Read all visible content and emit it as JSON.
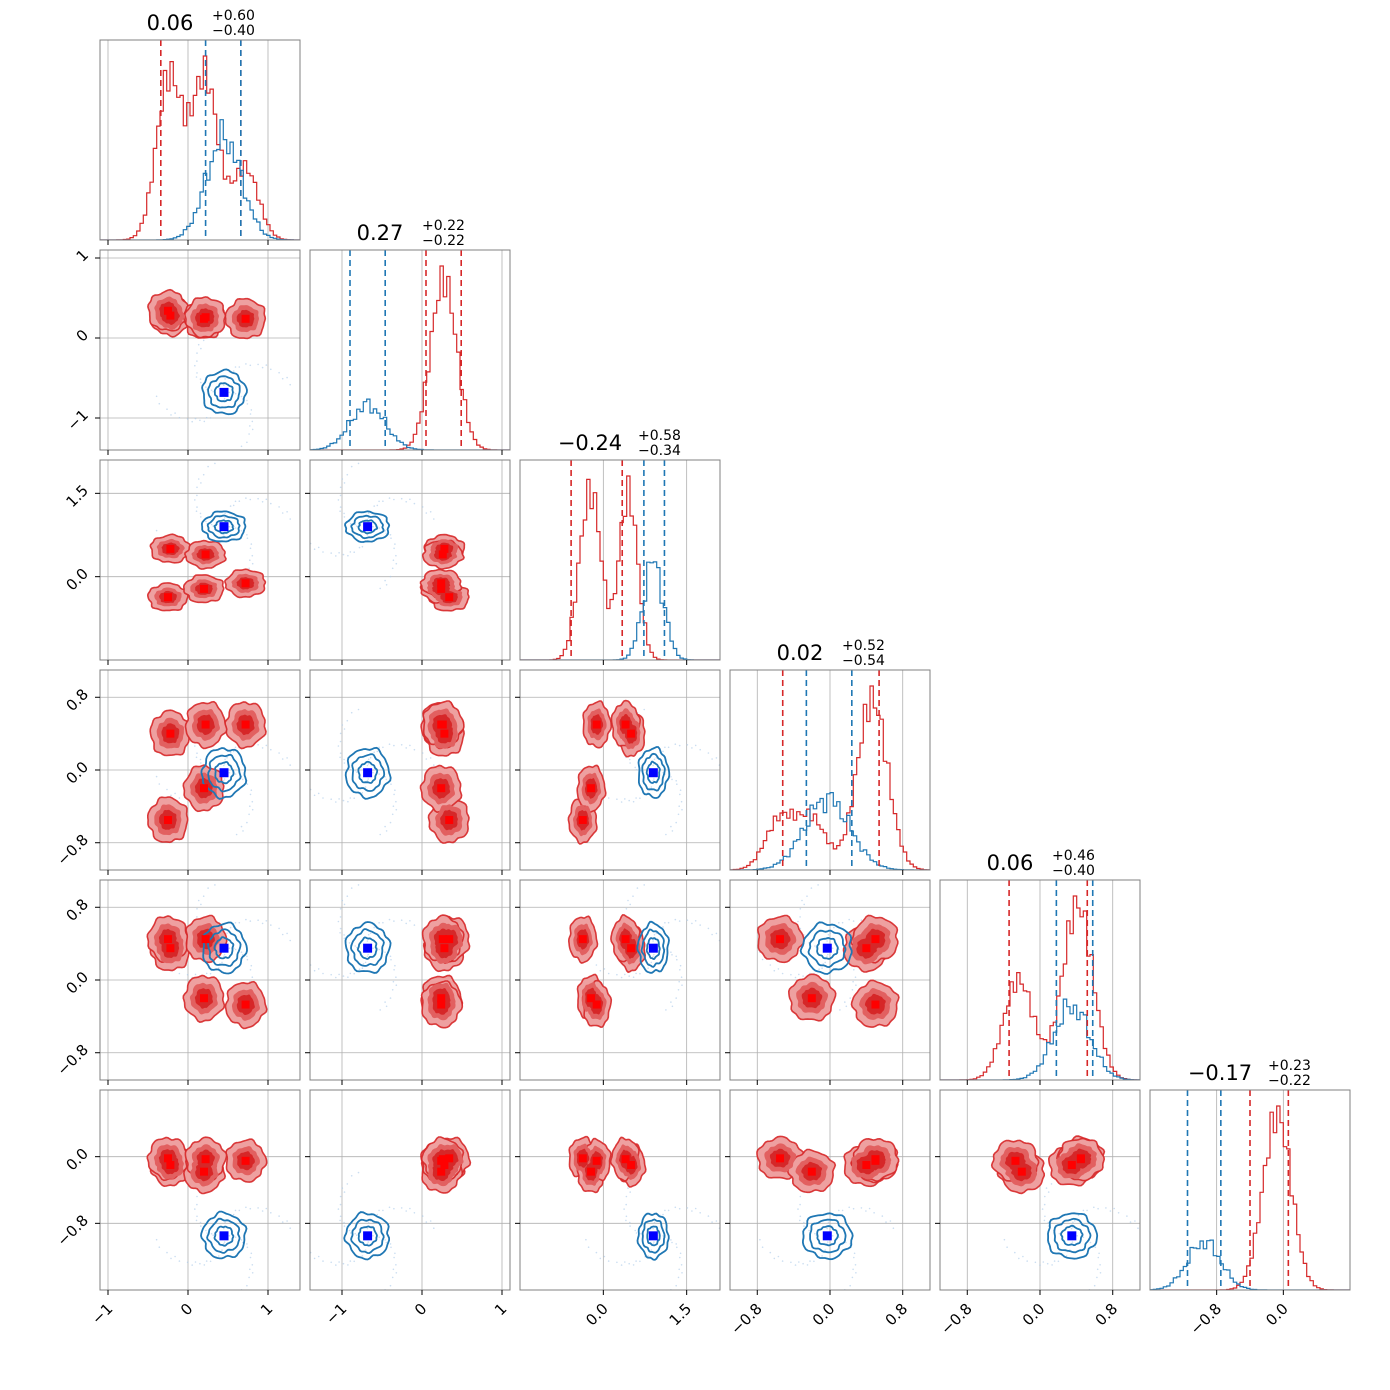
{
  "chart_data": {
    "type": "corner",
    "n_params": 6,
    "colors": {
      "red": "#d62728",
      "red_light": "#eea0a0",
      "red_mid": "#e26060",
      "blue": "#1f77b4",
      "blue_marker": "#0000ff",
      "red_marker": "#ff0000",
      "grid": "#b0b0b0",
      "frame": "#808080"
    },
    "titles": [
      {
        "value": "0.06",
        "plus": "+0.60",
        "minus": "−0.40"
      },
      {
        "value": "0.27",
        "plus": "+0.22",
        "minus": "−0.22"
      },
      {
        "value": "−0.24",
        "plus": "+0.58",
        "minus": "−0.34"
      },
      {
        "value": "0.02",
        "plus": "+0.52",
        "minus": "−0.54"
      },
      {
        "value": "0.06",
        "plus": "+0.46",
        "minus": "−0.40"
      },
      {
        "value": "−0.17",
        "plus": "+0.23",
        "minus": "−0.22"
      }
    ],
    "ranges": [
      [
        -1.1,
        1.4
      ],
      [
        -1.4,
        1.1
      ],
      [
        -1.5,
        2.1
      ],
      [
        -1.1,
        1.1
      ],
      [
        -1.1,
        1.1
      ],
      [
        -1.6,
        0.8
      ]
    ],
    "ticks": [
      {
        "values": [
          -1,
          0,
          1
        ],
        "labels": [
          "−1",
          "0",
          "1"
        ]
      },
      {
        "values": [
          -1,
          0,
          1
        ],
        "labels": [
          "−1",
          "0",
          "1"
        ]
      },
      {
        "values": [
          0.0,
          1.5
        ],
        "labels": [
          "0.0",
          "1.5"
        ]
      },
      {
        "values": [
          -0.8,
          0.0,
          0.8
        ],
        "labels": [
          "−0.8",
          "0.0",
          "0.8"
        ]
      },
      {
        "values": [
          -0.8,
          0.0,
          0.8
        ],
        "labels": [
          "−0.8",
          "0.0",
          "0.8"
        ]
      },
      {
        "values": [
          -0.8,
          0.0
        ],
        "labels": [
          "−0.8",
          "0.0"
        ]
      }
    ],
    "blue_truth": [
      0.45,
      -0.68,
      0.9,
      -0.03,
      0.35,
      -0.95
    ],
    "red_truths": [
      [
        -0.22,
        0.28,
        0.5,
        0.4,
        0.35,
        -0.1
      ],
      [
        -0.25,
        0.34,
        -0.37,
        -0.55,
        0.45,
        -0.02
      ],
      [
        0.2,
        0.24,
        -0.22,
        -0.2,
        -0.2,
        -0.18
      ],
      [
        0.72,
        0.24,
        -0.12,
        0.5,
        -0.27,
        -0.05
      ],
      [
        0.22,
        0.26,
        0.4,
        0.5,
        0.45,
        -0.03
      ]
    ],
    "hist_quantiles": {
      "blue": [
        [
          0.22,
          0.66
        ],
        [
          -0.9,
          -0.46
        ],
        [
          0.73,
          1.1
        ],
        [
          -0.26,
          0.24
        ],
        [
          0.18,
          0.58
        ],
        [
          -1.15,
          -0.75
        ]
      ],
      "red": [
        [
          -0.34,
          0.66
        ],
        [
          0.05,
          0.49
        ],
        [
          -0.58,
          0.34
        ],
        [
          -0.52,
          0.54
        ],
        [
          -0.34,
          0.52
        ],
        [
          -0.4,
          0.06
        ]
      ]
    }
  }
}
